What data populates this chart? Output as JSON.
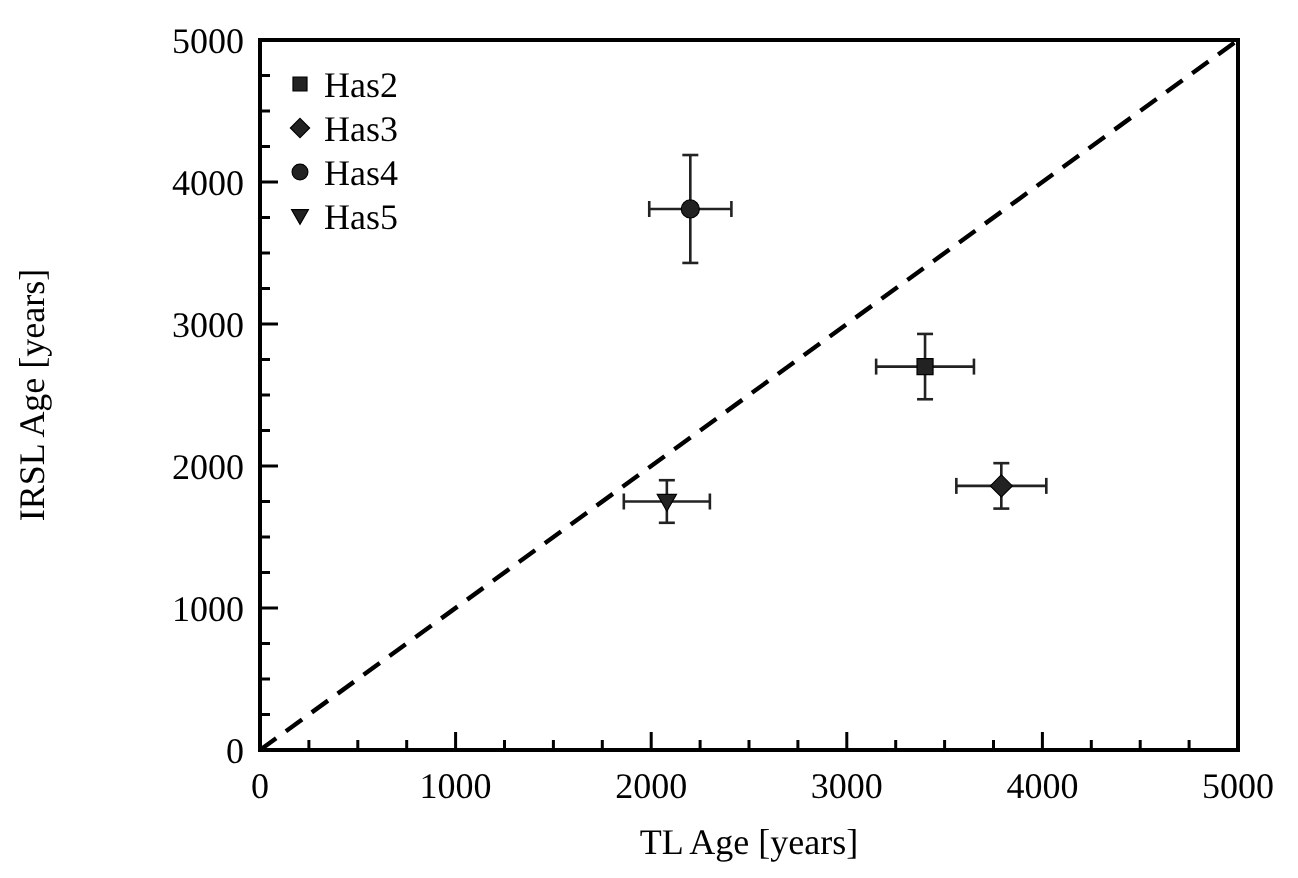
{
  "chart_data": {
    "type": "scatter",
    "xlabel": "TL Age [years]",
    "ylabel": "IRSL Age [years]",
    "xlim": [
      0,
      5000
    ],
    "ylim": [
      0,
      5000
    ],
    "xticks": [
      0,
      {
        "value": 250,
        "label": null
      },
      1000,
      {
        "value": 500,
        "label": null
      },
      {
        "value": 750,
        "label": null
      },
      {
        "value": 1250,
        "label": null
      },
      {
        "value": 1500,
        "label": null
      },
      {
        "value": 1750,
        "label": null
      },
      2000,
      {
        "value": 2250,
        "label": null
      },
      {
        "value": 2500,
        "label": null
      },
      {
        "value": 2750,
        "label": null
      },
      3000,
      {
        "value": 3250,
        "label": null
      },
      {
        "value": 3500,
        "label": null
      },
      {
        "value": 3750,
        "label": null
      },
      4000,
      {
        "value": 4250,
        "label": null
      },
      {
        "value": 4500,
        "label": null
      },
      {
        "value": 4750,
        "label": null
      },
      5000
    ],
    "yticks": [
      0,
      {
        "value": 250,
        "label": null
      },
      {
        "value": 500,
        "label": null
      },
      {
        "value": 750,
        "label": null
      },
      1000,
      {
        "value": 1250,
        "label": null
      },
      {
        "value": 1500,
        "label": null
      },
      {
        "value": 1750,
        "label": null
      },
      2000,
      {
        "value": 2250,
        "label": null
      },
      {
        "value": 2500,
        "label": null
      },
      {
        "value": 2750,
        "label": null
      },
      3000,
      {
        "value": 3250,
        "label": null
      },
      {
        "value": 3500,
        "label": null
      },
      {
        "value": 3750,
        "label": null
      },
      4000,
      {
        "value": 4250,
        "label": null
      },
      {
        "value": 4500,
        "label": null
      },
      {
        "value": 4750,
        "label": null
      },
      5000
    ],
    "grid": false,
    "legend": "top left",
    "series": [
      {
        "type": "line",
        "x": [
          0,
          5000
        ],
        "values": [
          0,
          5000
        ],
        "color": "#000000",
        "line_style": "dashed",
        "marker": "none"
      },
      {
        "name": "Has2",
        "color": "#222222",
        "marker": "square",
        "x": [
          3400
        ],
        "values": [
          2700
        ],
        "errors": [
          230
        ],
        "xerrors": [
          250
        ]
      },
      {
        "name": "Has3",
        "color": "#222222",
        "marker": "diamond",
        "x": [
          3790
        ],
        "values": [
          1860
        ],
        "errors": [
          160
        ],
        "xerrors": [
          230
        ]
      },
      {
        "name": "Has4",
        "color": "#222222",
        "marker": "circle",
        "x": [
          2200
        ],
        "values": [
          3810
        ],
        "errors": [
          380
        ],
        "xerrors": [
          210
        ]
      },
      {
        "name": "Has5",
        "color": "#222222",
        "marker": "triangle",
        "x": [
          2080
        ],
        "values": [
          1750
        ],
        "errors": [
          150
        ],
        "xerrors": [
          220
        ]
      }
    ]
  }
}
